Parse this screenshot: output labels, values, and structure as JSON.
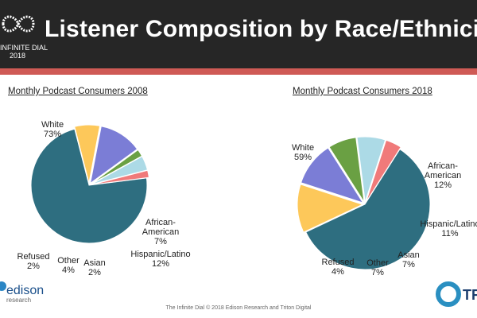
{
  "header": {
    "title": "Listener Composition by Race/Ethnicity",
    "logo_line1": "INFINITE DIAL",
    "logo_line2": "2018"
  },
  "chart_data": [
    {
      "type": "pie",
      "title": "Monthly Podcast Consumers 2008",
      "slices": [
        {
          "label": "White",
          "pct_text": "73%",
          "value": 73,
          "color": "#2e6e80"
        },
        {
          "label": "African-American",
          "pct_text": "7%",
          "value": 7,
          "color": "#fdc85a"
        },
        {
          "label": "Hispanic/Latino",
          "pct_text": "12%",
          "value": 12,
          "color": "#7b7dd6"
        },
        {
          "label": "Asian",
          "pct_text": "2%",
          "value": 2,
          "color": "#6aa043"
        },
        {
          "label": "Other",
          "pct_text": "4%",
          "value": 4,
          "color": "#acdae6"
        },
        {
          "label": "Refused",
          "pct_text": "2%",
          "value": 2,
          "color": "#f07a7a"
        }
      ]
    },
    {
      "type": "pie",
      "title": "Monthly Podcast Consumers 2018",
      "slices": [
        {
          "label": "White",
          "pct_text": "59%",
          "value": 59,
          "color": "#2e6e80"
        },
        {
          "label": "African-American",
          "pct_text": "12%",
          "value": 12,
          "color": "#fdc85a"
        },
        {
          "label": "Hispanic/Latino",
          "pct_text": "11%",
          "value": 11,
          "color": "#7b7dd6"
        },
        {
          "label": "Asian",
          "pct_text": "7%",
          "value": 7,
          "color": "#6aa043"
        },
        {
          "label": "Other",
          "pct_text": "7%",
          "value": 7,
          "color": "#acdae6"
        },
        {
          "label": "Refused",
          "pct_text": "4%",
          "value": 4,
          "color": "#f07a7a"
        }
      ]
    }
  ],
  "footer": {
    "text": "The Infinite Dial  © 2018 Edison Research and Triton Digital",
    "edison": "edison",
    "edison_sub": "research",
    "triton": "TR"
  }
}
